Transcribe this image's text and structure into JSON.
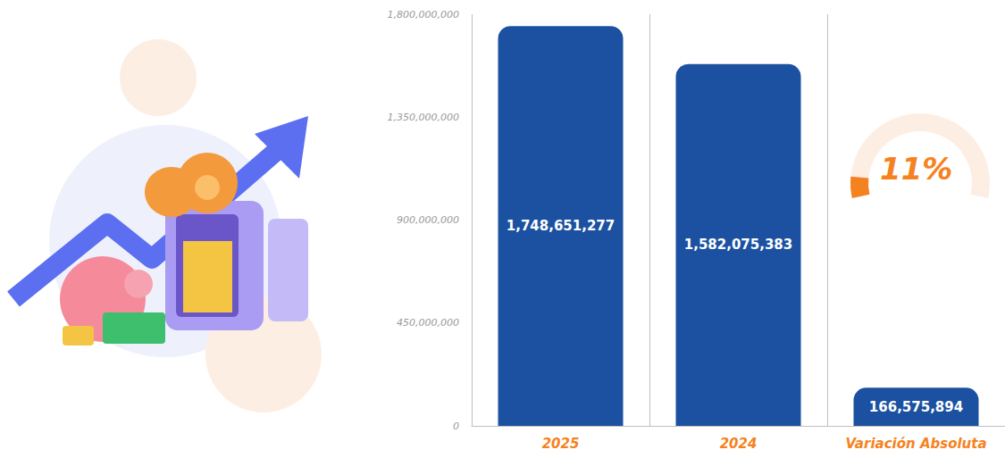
{
  "chart_data": {
    "type": "bar",
    "categories": [
      "2025",
      "2024",
      "Variación Absoluta"
    ],
    "values": [
      1748651277,
      1582075383,
      166575894
    ],
    "value_labels": [
      "1,748,651,277",
      "1,582,075,383",
      "166,575,894"
    ],
    "color": "#1b51a0",
    "ylim": [
      0,
      1800000000
    ],
    "yticks": [
      0,
      {
        "value": 450000000,
        "label": "450,000,000"
      },
      {
        "value": 900000000,
        "label": "900,000,000"
      },
      {
        "value": 1350000000,
        "label": "1,350,000,000"
      },
      {
        "value": 1800000000,
        "label": "1,800,000,000"
      }
    ],
    "grid": true,
    "data_labels": true,
    "annotation": "11%"
  }
}
